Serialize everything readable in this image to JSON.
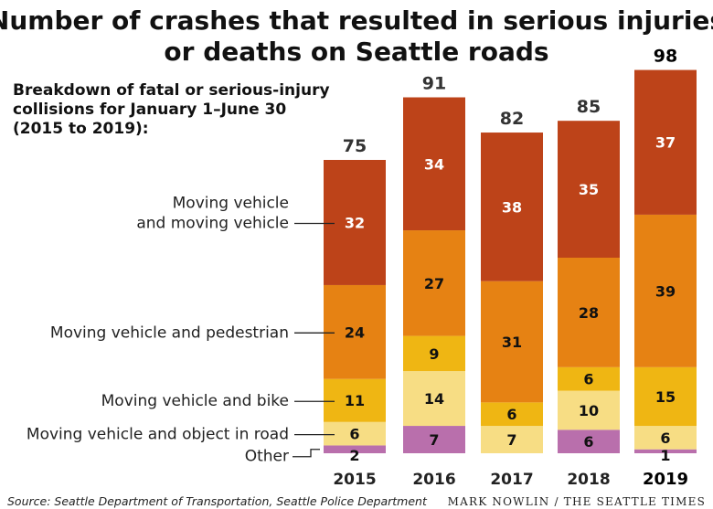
{
  "chart_data": {
    "type": "bar",
    "stacked": true,
    "title": "Number of crashes that resulted in serious injuries or deaths on Seattle roads",
    "title_lines": [
      "Number of crashes that resulted in serious injuries",
      "or deaths on Seattle roads"
    ],
    "subtitle_lines": [
      "Breakdown of fatal or serious-injury",
      "collisions for January 1–June 30",
      "(2015 to 2019):"
    ],
    "categories": [
      "2015",
      "2016",
      "2017",
      "2018",
      "2019"
    ],
    "totals": [
      75,
      91,
      82,
      85,
      98
    ],
    "series": [
      {
        "name": "Other",
        "label_lines": [
          "Other"
        ],
        "color": "#b96fac",
        "label_color": "#111111",
        "values": [
          2,
          7,
          0,
          6,
          1
        ]
      },
      {
        "name": "Moving vehicle and object in road",
        "label_lines": [
          "Moving vehicle and object in road"
        ],
        "color": "#f7dd84",
        "label_color": "#111111",
        "values": [
          6,
          14,
          7,
          10,
          6
        ]
      },
      {
        "name": "Moving vehicle and bike",
        "label_lines": [
          "Moving vehicle and bike"
        ],
        "color": "#efb613",
        "label_color": "#111111",
        "values": [
          11,
          9,
          6,
          6,
          15
        ]
      },
      {
        "name": "Moving vehicle and pedestrian",
        "label_lines": [
          "Moving vehicle and pedestrian"
        ],
        "color": "#e68213",
        "label_color": "#111111",
        "values": [
          24,
          27,
          31,
          28,
          39
        ]
      },
      {
        "name": "Moving vehicle and moving vehicle",
        "label_lines": [
          "Moving vehicle",
          "and moving vehicle"
        ],
        "color": "#bd4319",
        "label_color": "#ffffff",
        "values": [
          32,
          34,
          38,
          35,
          37
        ]
      }
    ],
    "highlight_category": "2019",
    "ylim": [
      0,
      98
    ],
    "source": "Source: Seattle Department of Transportation, Seattle Police Department",
    "credit": "MARK NOWLIN / THE SEATTLE TIMES"
  }
}
